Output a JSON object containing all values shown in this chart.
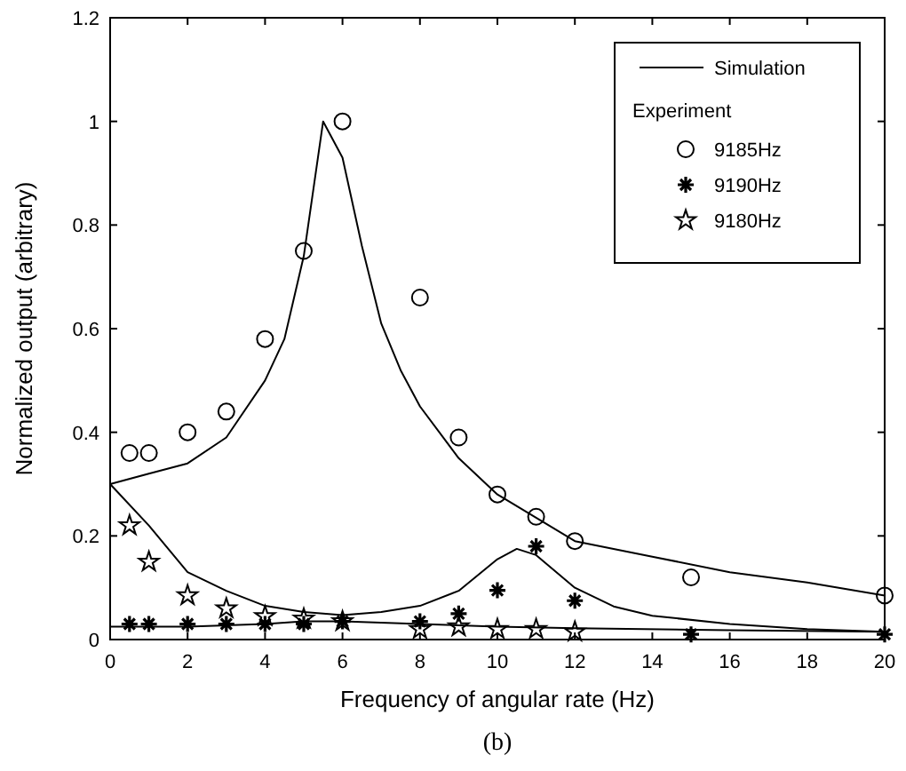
{
  "chart_data": {
    "type": "line",
    "xlabel": "Frequency of angular rate (Hz)",
    "ylabel": "Normalized output   (arbitrary)",
    "annotations": [
      "Experiment",
      "(b)"
    ],
    "xlim": [
      0,
      20
    ],
    "ylim": [
      0,
      1.2
    ],
    "xticks": [
      0,
      2,
      4,
      6,
      8,
      10,
      12,
      14,
      16,
      18,
      20
    ],
    "yticks": [
      0,
      0.2,
      0.4,
      0.6,
      0.8,
      1,
      1.2
    ],
    "grid": false,
    "legend": "top right",
    "series": [
      {
        "name": "Simulation",
        "color": "#000000",
        "marker": "none",
        "line_style": "solid",
        "x": [
          0,
          1,
          2,
          3,
          4,
          4.5,
          5,
          5.5,
          6,
          6.5,
          7,
          7.5,
          8,
          9,
          10,
          12,
          14,
          16,
          18,
          20
        ],
        "values": [
          0.3,
          0.32,
          0.34,
          0.39,
          0.5,
          0.58,
          0.74,
          1.0,
          0.93,
          0.76,
          0.61,
          0.52,
          0.45,
          0.35,
          0.28,
          0.19,
          0.16,
          0.13,
          0.11,
          0.085
        ]
      },
      {
        "color": "#000000",
        "marker": "none",
        "line_style": "solid",
        "x": [
          0,
          1,
          2,
          3,
          4,
          5,
          6,
          7,
          8,
          9,
          10,
          10.5,
          11,
          12,
          13,
          14,
          16,
          18,
          20
        ],
        "values": [
          0.3,
          0.22,
          0.13,
          0.094,
          0.065,
          0.053,
          0.047,
          0.053,
          0.065,
          0.094,
          0.155,
          0.175,
          0.163,
          0.1,
          0.064,
          0.046,
          0.03,
          0.02,
          0.015
        ]
      },
      {
        "color": "#000000",
        "marker": "none",
        "line_style": "solid",
        "x": [
          0,
          2,
          4,
          5,
          6,
          8,
          10,
          12,
          16,
          20
        ],
        "values": [
          0.025,
          0.025,
          0.03,
          0.035,
          0.035,
          0.03,
          0.025,
          0.022,
          0.018,
          0.015
        ]
      },
      {
        "name": "9185Hz",
        "type": "scatter",
        "color": "#000000",
        "marker": "circle",
        "x": [
          0.5,
          1,
          2,
          3,
          4,
          5,
          6,
          8,
          9,
          10,
          11,
          12,
          15,
          20
        ],
        "values": [
          0.36,
          0.36,
          0.4,
          0.44,
          0.58,
          0.75,
          1.0,
          0.66,
          0.39,
          0.28,
          0.237,
          0.19,
          0.12,
          0.085
        ]
      },
      {
        "name": "9190Hz",
        "type": "scatter",
        "color": "#000000",
        "marker": "cross",
        "x": [
          0.5,
          1,
          2,
          3,
          4,
          5,
          6,
          8,
          9,
          10,
          11,
          12,
          15,
          20
        ],
        "values": [
          0.03,
          0.03,
          0.03,
          0.03,
          0.03,
          0.03,
          0.035,
          0.035,
          0.05,
          0.095,
          0.18,
          0.075,
          0.01,
          0.01
        ]
      },
      {
        "name": "9180Hz",
        "type": "scatter",
        "color": "#000000",
        "marker": "star",
        "x": [
          0.5,
          1,
          2,
          3,
          4,
          5,
          6,
          8,
          9,
          10,
          11,
          12
        ],
        "values": [
          0.22,
          0.15,
          0.085,
          0.06,
          0.045,
          0.04,
          0.035,
          0.02,
          0.025,
          0.02,
          0.02,
          0.015
        ]
      }
    ]
  }
}
